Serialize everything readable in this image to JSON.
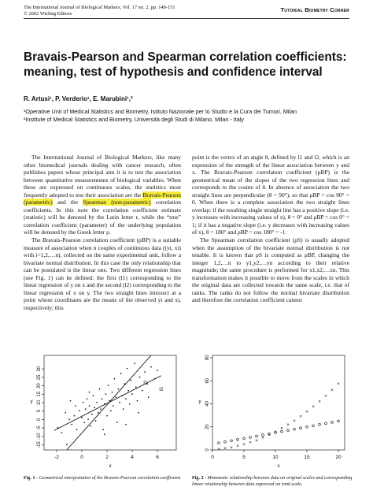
{
  "header": {
    "journal_line": "The International Journal of Biological Markers, Vol. 17 no. 2, pp. 148-151",
    "copyright_line": "© 2002 Wichtig Editore",
    "section": "Tutorial Biometry Corner"
  },
  "title_lines": [
    "Bravais-Pearson and Spearman correlation coefficients:",
    "meaning, test of hypothesis and confidence interval"
  ],
  "authors": "R. Artusi¹, P. Verderio¹, E. Marubini¹,²",
  "affiliations": [
    "¹Operative Unit of Medical Statistics and Biometry, Istituto Nazionale per lo Studio e la Cura dei Tumori, Milan",
    "²Institute of Medical Statistics and Biometry, Università degli Studi di Milano, Milan - Italy"
  ],
  "left_col": {
    "p1_a": "The International Journal of Biological Markers, like many other biomedical journals dealing with cancer research, often publishes papers whose principal aim it is to test the association between quantitative measurements of biological variables. When these are expressed on continuous scales, the statistics most frequently adopted to test their association are the ",
    "p1_hl1": "Bravais-Pearson (parametric)",
    "p1_b": " and the ",
    "p1_hl2": "Spearman (non-parametric)",
    "p1_c": " correlation coefficients. In this note the correlation coefficient estimate (statistic) will be denoted by the Latin letter r, while the “true” correlation coefficient (parameter) of the underlying population will be denoted by the Greek letter ρ.",
    "p2": "The Bravais-Pearson correlation coefficient (ρBP) is a suitable measure of association when n couples of continuous data ((yi, xi) with i=1,2,…n), collected on the same experimental unit, follow a bivariate normal distribution. In this case the only relationship that can be postulated is the linear one. Two different regression lines (see Fig. 1) can be defined: the first (l1) corresponding to the linear regression of y on x and the second (l2) corresponding to the linear regression of x on y. The two straight lines intersect at a point whose coordinates are the means of the observed yi and xi, respectively; this"
  },
  "right_col": {
    "p1": "point is the vertex of an angle θ, defined by l1 and l2, which is an expression of the strength of the linear association between y and x. The Bravais-Pearson correlation coefficient (ρBP) is the geometrical mean of the slopes of the two regression lines and corresponds to the cosine of θ. In absence of association the two straight lines are perpendicular (θ = 90°), so that ρBP = cos 90° = 0. When there is a complete association the two straight lines overlap: if the resulting single straight line has a positive slope (i.e. y increases with increasing values of x), θ = 0° and ρBP = cos 0° = 1; if it has a negative slope (i.e. y decreases with increasing values of x), θ = 180° and ρBP = cos 180° = -1.",
    "p2": "The Spearman correlation coefficient (ρS) is usually adopted when the assumption of the bivariate normal distribution is not tenable. It is known that ρS is computed as ρBP, changing the integer 1,2,…n to y1,y2,…yn according to their relative magnitude; the same procedure is performed for x1,x2,…xn. This transformation makes it possible to move from the scales in which the original data are collected towards the same scale, i.e. that of ranks. The ranks do not follow the normal bivariate distribution and therefore the correlation coefficient cannot"
  },
  "chart_data": [
    {
      "type": "scatter",
      "title": "",
      "xlabel": "x",
      "ylabel": "y",
      "xlim": [
        -3,
        7.5
      ],
      "ylim": [
        -18,
        38
      ],
      "x_ticks": [
        -2,
        0,
        2,
        4,
        6
      ],
      "y_ticks": [
        -15,
        -10,
        -5,
        0,
        5,
        10,
        15,
        20,
        25,
        30
      ],
      "grid": false,
      "line_labels": [
        "l1",
        "l2"
      ],
      "points": [
        [
          -1.9,
          -5
        ],
        [
          -1.6,
          -8
        ],
        [
          -1.3,
          4
        ],
        [
          -1.2,
          -15
        ],
        [
          -1,
          0
        ],
        [
          -0.8,
          -3
        ],
        [
          -0.6,
          2
        ],
        [
          -0.5,
          8
        ],
        [
          -0.4,
          -6
        ],
        [
          -0.2,
          5
        ],
        [
          0,
          1
        ],
        [
          0.1,
          10
        ],
        [
          0.2,
          -2
        ],
        [
          0.3,
          6
        ],
        [
          0.4,
          12
        ],
        [
          0.5,
          0
        ],
        [
          0.6,
          8
        ],
        [
          0.7,
          -4
        ],
        [
          0.8,
          3
        ],
        [
          0.9,
          14
        ],
        [
          1,
          7
        ],
        [
          1.1,
          -1
        ],
        [
          1.2,
          10
        ],
        [
          1.3,
          4
        ],
        [
          1.4,
          18
        ],
        [
          1.5,
          6
        ],
        [
          1.6,
          12
        ],
        [
          1.7,
          -6
        ],
        [
          1.8,
          9
        ],
        [
          1.9,
          15
        ],
        [
          2,
          2
        ],
        [
          2.1,
          20
        ],
        [
          2.2,
          11
        ],
        [
          2.3,
          5
        ],
        [
          2.4,
          16
        ],
        [
          2.5,
          8
        ],
        [
          2.6,
          24
        ],
        [
          2.7,
          13
        ],
        [
          2.8,
          -2
        ],
        [
          2.9,
          18
        ],
        [
          3,
          10
        ],
        [
          3.1,
          27
        ],
        [
          3.2,
          14
        ],
        [
          3.3,
          6
        ],
        [
          3.4,
          21
        ],
        [
          3.5,
          12
        ],
        [
          3.6,
          30
        ],
        [
          3.7,
          17
        ],
        [
          3.8,
          9
        ],
        [
          3.9,
          23
        ],
        [
          4,
          15
        ],
        [
          4.2,
          33
        ],
        [
          4.3,
          19
        ],
        [
          4.4,
          11
        ],
        [
          4.6,
          25
        ],
        [
          4.8,
          17
        ],
        [
          5,
          28
        ],
        [
          5.2,
          21
        ],
        [
          5.5,
          31
        ],
        [
          5.8,
          24
        ],
        [
          6,
          29
        ],
        [
          -0.9,
          11
        ],
        [
          0.6,
          16
        ],
        [
          1.8,
          -9
        ],
        [
          3.5,
          -3
        ],
        [
          4.5,
          4
        ],
        [
          5.3,
          13
        ]
      ],
      "regression_lines": [
        {
          "name": "l1",
          "from": [
            -2.2,
            -6.5
          ],
          "to": [
            6.3,
            26
          ]
        },
        {
          "name": "l2",
          "from": [
            -1.2,
            -18
          ],
          "to": [
            5.5,
            38
          ]
        }
      ]
    },
    {
      "type": "scatter",
      "title": "",
      "xlabel": "x",
      "ylabel": "y",
      "xlim": [
        0,
        21
      ],
      "ylim": [
        0,
        82
      ],
      "x_ticks": [
        0,
        5,
        10,
        15,
        20
      ],
      "y_ticks": [
        0,
        20,
        40,
        60,
        80
      ],
      "grid": false,
      "series": [
        {
          "marker": "x",
          "x": [
            1,
            2,
            3,
            4,
            5,
            6,
            7,
            8,
            9,
            10,
            11,
            12,
            13,
            14,
            15,
            16,
            17,
            18,
            19,
            20
          ],
          "y": [
            0.6,
            1.2,
            2.1,
            3.3,
            4.7,
            6.4,
            8.3,
            10.5,
            13,
            15.7,
            18.7,
            21.9,
            25.4,
            29.2,
            33.2,
            37.5,
            42,
            46.9,
            52,
            57.5
          ]
        },
        {
          "marker": "o",
          "x": [
            1,
            2,
            3,
            4,
            5,
            6,
            7,
            8,
            9,
            10,
            11,
            12,
            13,
            14,
            15,
            16,
            17,
            18,
            19,
            20
          ],
          "y": [
            6,
            7,
            8,
            9,
            10,
            11,
            12,
            13,
            14,
            15,
            16,
            17,
            18,
            19,
            20,
            21,
            22,
            23,
            24,
            25
          ]
        }
      ]
    }
  ],
  "captions": {
    "fig1_label": "Fig. 1 -",
    "fig1_text": " Geometrical interpretation of the Bravais-Pearson correlation coefficient.",
    "fig2_label": "Fig. 2 -",
    "fig2_text": " Monotonic relationship between data on original scales and corresponding linear relationship between data expressed on rank scale."
  }
}
